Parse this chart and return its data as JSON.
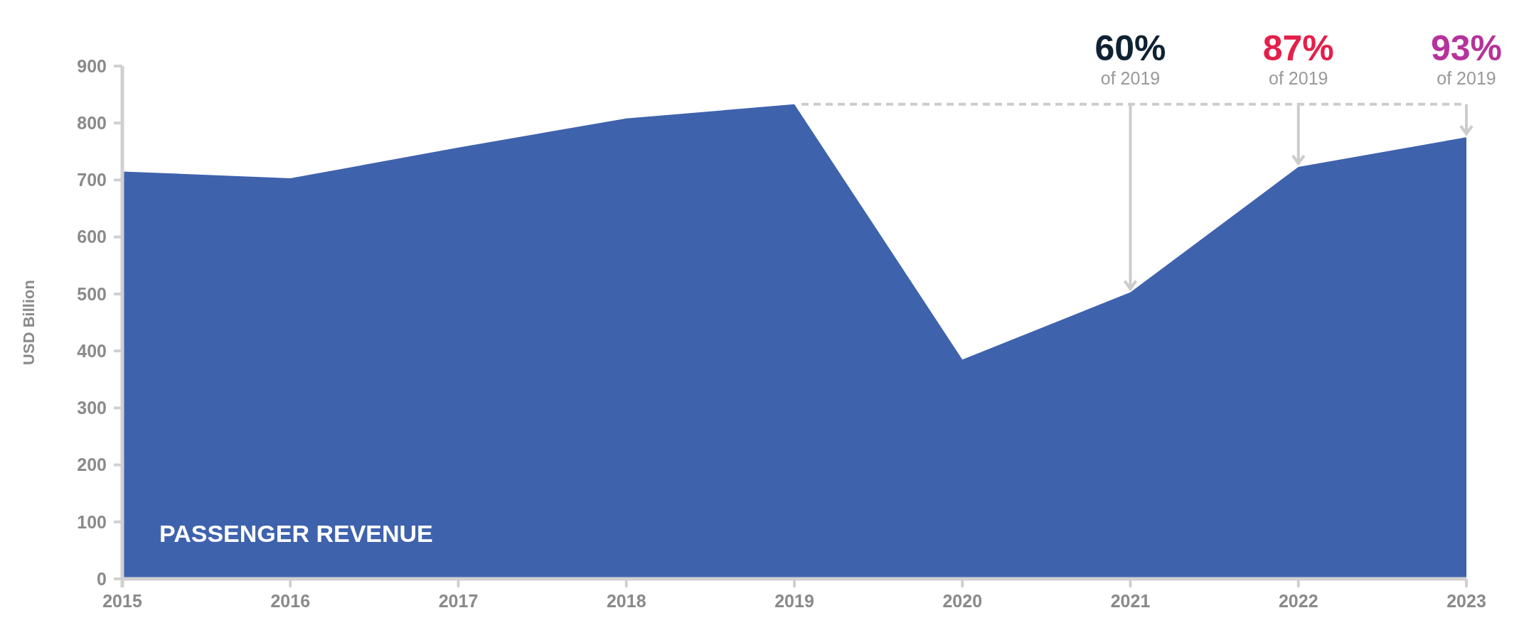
{
  "chart_data": {
    "type": "area",
    "ylabel": "USD Billion",
    "categories": [
      "2015",
      "2016",
      "2017",
      "2018",
      "2019",
      "2020",
      "2021",
      "2022",
      "2023"
    ],
    "series": [
      {
        "name": "PASSENGER REVENUE",
        "color": "#3f62ad",
        "values": [
          715,
          703,
          757,
          808,
          833,
          385,
          503,
          723,
          775
        ]
      }
    ],
    "ylim": [
      0,
      900
    ],
    "yticks": [
      0,
      100,
      200,
      300,
      400,
      500,
      600,
      700,
      800,
      900
    ],
    "grid": false,
    "ref_lines": [
      {
        "axis": "y",
        "value": 833,
        "color": "#cccccc",
        "line_style": "dashed"
      }
    ],
    "annotations": [
      {
        "text": "60%\nof 2019",
        "x": "2021",
        "y": 503
      },
      {
        "text": "87%\nof 2019",
        "x": "2022",
        "y": 723
      },
      {
        "text": "93%\nof 2019",
        "x": "2023",
        "y": 775
      }
    ]
  }
}
